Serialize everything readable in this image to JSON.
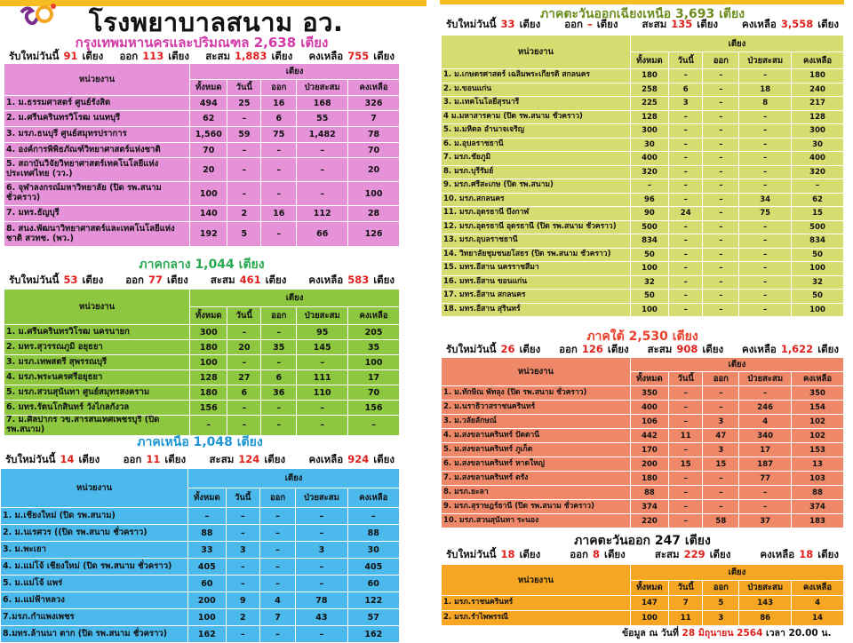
{
  "title": "โรงพยาบาลสนาม อว.",
  "labels": {
    "new_today": "รับใหม่วันนี้",
    "discharged": "ออก",
    "cumulative": "สะสม",
    "remaining": "คงเหลือ",
    "unit": "เตียง",
    "col_unit": "หน่วยงาน",
    "col_beds": "เตียง",
    "cols": [
      "ทั้งหมด",
      "วันนี้",
      "ออก",
      "ป่วยสะสม",
      "คงเหลือ"
    ]
  },
  "regions": [
    {
      "title": "กรุงเทพมหานครและปริมณฑล 2,638 เตียง",
      "title_color": "#d33aa8",
      "table_color": "#e592d8",
      "summary": {
        "new_today": "91",
        "discharged": "113",
        "cumulative": "1,883",
        "remaining": "755"
      },
      "rows": [
        [
          "1. ม.ธรรมศาสตร์ ศูนย์รังสิต",
          "494",
          "25",
          "16",
          "168",
          "326"
        ],
        [
          "2. ม.ศรีนครินทรวิโรฒ นนทบุรี",
          "62",
          "–",
          "6",
          "55",
          "7"
        ],
        [
          "3. มรภ.ธนบุรี ศูนย์สมุทรปราการ",
          "1,560",
          "59",
          "75",
          "1,482",
          "78"
        ],
        [
          "4. องค์การพิพิธภัณฑ์วิทยาศาสตร์แห่งชาติ",
          "70",
          "–",
          "–",
          "–",
          "70"
        ],
        [
          "5. สถาบันวิจัยวิทยาศาสตร์เทคโนโลยีแห่งประเทศไทย (วว.)",
          "20",
          "–",
          "–",
          "–",
          "20"
        ],
        [
          "6. จุฬาลงกรณ์มหาวิทยาลัย (ปิด รพ.สนามชั่วคราว)",
          "100",
          "–",
          "–",
          "–",
          "100"
        ],
        [
          "7. มทร.ธัญบุรี",
          "140",
          "2",
          "16",
          "112",
          "28"
        ],
        [
          "8. สนง.พัฒนาวิทยาศาสตร์และเทคโนโลยีแห่งชาติ สวทช. (พว.)",
          "192",
          "5",
          "–",
          "66",
          "126"
        ]
      ]
    },
    {
      "title": "ภาคกลาง 1,044 เตียง",
      "title_color": "#2aa852",
      "table_color": "#8dc63f",
      "summary": {
        "new_today": "53",
        "discharged": "77",
        "cumulative": "461",
        "remaining": "583"
      },
      "rows": [
        [
          "1. ม.ศรีนครินทรวิโรฒ นครนายก",
          "300",
          "–",
          "–",
          "95",
          "205"
        ],
        [
          "2. มทร.สุวรรณภูมิ อยุธยา",
          "180",
          "20",
          "35",
          "145",
          "35"
        ],
        [
          "3. มรภ.เทพสตรี สุพรรณบุรี",
          "100",
          "–",
          "–",
          "–",
          "100"
        ],
        [
          "4. มรภ.พระนครศรีอยุธยา",
          "128",
          "27",
          "6",
          "111",
          "17"
        ],
        [
          "5. มรภ.สวนสุนันทา ศูนย์สมุทรสงคราม",
          "180",
          "6",
          "36",
          "110",
          "70"
        ],
        [
          "6. มทร.รัตนโกสินทร์ วังไกลกังวล",
          "156",
          "–",
          "–",
          "–",
          "156"
        ],
        [
          "7. ม.ศิลปากร วข.สารสนเทศเพชรบุรี (ปิด รพ.สนาม)",
          "–",
          "–",
          "–",
          "–",
          "–"
        ]
      ]
    },
    {
      "title": "ภาคเหนือ 1,048 เตียง",
      "title_color": "#1e96d4",
      "table_color": "#4cb9ec",
      "summary": {
        "new_today": "14",
        "discharged": "11",
        "cumulative": "124",
        "remaining": "924"
      },
      "rows": [
        [
          "1. ม.เชียงใหม่ (ปิด รพ.สนาม)",
          "–",
          "–",
          "–",
          "–",
          "–"
        ],
        [
          "2. ม.นเรศวร ((ปิด รพ.สนาม ชั่วคราว)",
          "88",
          "–",
          "–",
          "–",
          "88"
        ],
        [
          "3. ม.พะเยา",
          "33",
          "3",
          "–",
          "3",
          "30"
        ],
        [
          "4. ม.แม่โจ้ เชียงใหม่ (ปิด รพ.สนาม ชั่วคราว)",
          "405",
          "–",
          "–",
          "–",
          "405"
        ],
        [
          "5. ม.แม่โจ้ แพร่",
          "60",
          "–",
          "–",
          "–",
          "60"
        ],
        [
          "6. ม.แม่ฟ้าหลวง",
          "200",
          "9",
          "4",
          "78",
          "122"
        ],
        [
          "7.มรภ.กำแพงเพชร",
          "100",
          "2",
          "7",
          "43",
          "57"
        ],
        [
          "8.มทร.ล้านนา ตาก (ปิด รพ.สนาม ชั่วคราว)",
          "162",
          "–",
          "–",
          "–",
          "162"
        ]
      ]
    },
    {
      "title": "ภาคตะวันออกเฉียงเหนือ 3,693 เตียง",
      "title_color": "#6e8c1e",
      "table_color": "#d7dc70",
      "summary": {
        "new_today": "33",
        "discharged": "–",
        "cumulative": "135",
        "remaining": "3,558"
      },
      "rows": [
        [
          "1. ม.เกษตรศาสตร์ เฉลิมพระเกียรติ สกลนคร",
          "180",
          "–",
          "–",
          "–",
          "180"
        ],
        [
          "2. ม.ขอนแก่น",
          "258",
          "6",
          "–",
          "18",
          "240"
        ],
        [
          "3. ม.เทคโนโลยีสุรนารี",
          "225",
          "3",
          "–",
          "8",
          "217"
        ],
        [
          "4 ม.มหาสารคาม (ปิด รพ.สนาม ชั่วคราว)",
          "128",
          "–",
          "–",
          "–",
          "128"
        ],
        [
          "5. ม.มหิดล อำนาจเจริญ",
          "300",
          "–",
          "–",
          "–",
          "300"
        ],
        [
          "6. ม.อุบลราชธานี",
          "30",
          "–",
          "–",
          "–",
          "30"
        ],
        [
          "7. มรภ.ชัยภูมิ",
          "400",
          "–",
          "–",
          "–",
          "400"
        ],
        [
          "8. มรภ.บุรีรัมย์",
          "320",
          "–",
          "–",
          "–",
          "320"
        ],
        [
          "9. มรภ.ศรีสะเกษ (ปิด รพ.สนาม)",
          "–",
          "–",
          "–",
          "–",
          "–"
        ],
        [
          "10. มรภ.สกลนคร",
          "96",
          "–",
          "–",
          "34",
          "62"
        ],
        [
          "11. มรภ.อุดรธานี บึงกาฬ",
          "90",
          "24",
          "–",
          "75",
          "15"
        ],
        [
          "12. มรภ.อุดรธานี อุดรธานี (ปิด รพ.สนาม ชั่วคราว)",
          "500",
          "–",
          "–",
          "–",
          "500"
        ],
        [
          "13. มรภ.อุบลราชธานี",
          "834",
          "–",
          "–",
          "–",
          "834"
        ],
        [
          "14. วิทยาลัยชุมชนยโสธร (ปิด รพ.สนาม ชั่วคราว)",
          "50",
          "–",
          "–",
          "–",
          "50"
        ],
        [
          "15. มทร.อีสาน นครราชสีมา",
          "100",
          "–",
          "–",
          "–",
          "100"
        ],
        [
          "16. มทร.อีสาน ขอนแก่น",
          "32",
          "–",
          "–",
          "–",
          "32"
        ],
        [
          "17. มทร.อีสาน สกลนคร",
          "50",
          "–",
          "–",
          "–",
          "50"
        ],
        [
          "18. มทร.อีสาน สุรินทร์",
          "100",
          "–",
          "–",
          "–",
          "100"
        ]
      ]
    },
    {
      "title": "ภาคใต้ 2,530 เตียง",
      "title_color": "#e8402a",
      "table_color": "#ef8868",
      "summary": {
        "new_today": "26",
        "discharged": "126",
        "cumulative": "908",
        "remaining": "1,622"
      },
      "rows": [
        [
          "1. ม.ทักษิณ พัทลุง (ปิด รพ.สนาม ชั่วคราว)",
          "350",
          "–",
          "–",
          "–",
          "350"
        ],
        [
          "2. ม.นราธิวาสราชนครินทร์",
          "400",
          "–",
          "–",
          "246",
          "154"
        ],
        [
          "3. ม.วลัยลักษณ์",
          "106",
          "–",
          "3",
          "4",
          "102"
        ],
        [
          "4. ม.สงขลานครินทร์ ปัตตานี",
          "442",
          "11",
          "47",
          "340",
          "102"
        ],
        [
          "5. ม.สงขลานครินทร์ ภูเก็ต",
          "170",
          "–",
          "3",
          "17",
          "153"
        ],
        [
          "6. ม.สงขลานครินทร์ หาดใหญ่",
          "200",
          "15",
          "15",
          "187",
          "13"
        ],
        [
          "7. ม.สงขลานครินทร์ ตรัง",
          "180",
          "–",
          "–",
          "77",
          "103"
        ],
        [
          "8. มรภ.ยะลา",
          "88",
          "–",
          "–",
          "–",
          "88"
        ],
        [
          "9. มรภ.สุราษฎร์ธานี (ปิด รพ.สนาม ชั่วคราว)",
          "374",
          "–",
          "–",
          "–",
          "374"
        ],
        [
          "10. มรภ.สวนสุนันทา ระนอง",
          "220",
          "–",
          "58",
          "37",
          "183"
        ]
      ]
    },
    {
      "title": "ภาคตะวันออก 247 เตียง",
      "title_color": "#111111",
      "table_color": "#f6a623",
      "summary": {
        "new_today": "18",
        "discharged": "8",
        "cumulative": "229",
        "remaining": "18"
      },
      "rows": [
        [
          "1. มรภ.ราชนครินทร์",
          "147",
          "7",
          "5",
          "143",
          "4"
        ],
        [
          "2. มรภ.รำไพพรรณี",
          "100",
          "11",
          "3",
          "86",
          "14"
        ]
      ]
    }
  ],
  "footer": {
    "prefix": "ข้อมูล ณ วันที่",
    "date": "28 มิถุนายน 2564",
    "time": "เวลา 20.00 น."
  }
}
